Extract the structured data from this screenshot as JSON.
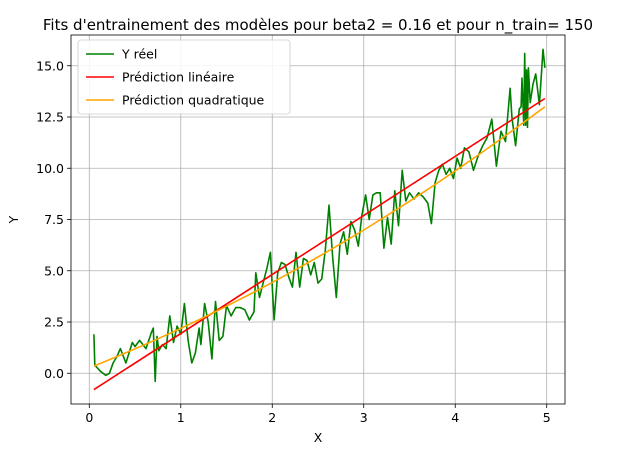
{
  "chart_data": {
    "type": "line",
    "title": "Fits d'entrainement des modèles pour beta2 = 0.16 et pour n_train= 150",
    "xlabel": "X",
    "ylabel": "Y",
    "xlim": [
      -0.2,
      5.2
    ],
    "ylim": [
      -1.5,
      16.5
    ],
    "xticks": [
      0,
      1,
      2,
      3,
      4,
      5
    ],
    "xtick_labels": [
      "0",
      "1",
      "2",
      "3",
      "4",
      "5"
    ],
    "yticks": [
      0.0,
      2.5,
      5.0,
      7.5,
      10.0,
      12.5,
      15.0
    ],
    "ytick_labels": [
      "0.0",
      "2.5",
      "5.0",
      "7.5",
      "10.0",
      "12.5",
      "15.0"
    ],
    "grid": true,
    "legend_position": "top-left",
    "series": [
      {
        "name": "Y réel",
        "color": "#008000",
        "x": [
          0.05,
          0.06,
          0.08,
          0.12,
          0.18,
          0.22,
          0.26,
          0.3,
          0.34,
          0.4,
          0.47,
          0.5,
          0.55,
          0.62,
          0.68,
          0.7,
          0.72,
          0.74,
          0.76,
          0.8,
          0.84,
          0.88,
          0.92,
          0.96,
          1.0,
          1.04,
          1.08,
          1.12,
          1.16,
          1.18,
          1.2,
          1.22,
          1.26,
          1.3,
          1.34,
          1.38,
          1.42,
          1.46,
          1.5,
          1.55,
          1.6,
          1.65,
          1.7,
          1.75,
          1.8,
          1.82,
          1.86,
          1.9,
          1.94,
          1.98,
          2.02,
          2.06,
          2.1,
          2.14,
          2.18,
          2.22,
          2.26,
          2.3,
          2.34,
          2.38,
          2.42,
          2.46,
          2.5,
          2.54,
          2.58,
          2.62,
          2.66,
          2.7,
          2.74,
          2.78,
          2.82,
          2.86,
          2.9,
          2.94,
          2.98,
          3.02,
          3.06,
          3.1,
          3.14,
          3.18,
          3.22,
          3.26,
          3.3,
          3.34,
          3.38,
          3.42,
          3.46,
          3.5,
          3.55,
          3.6,
          3.65,
          3.7,
          3.74,
          3.78,
          3.82,
          3.86,
          3.9,
          3.94,
          3.98,
          4.02,
          4.06,
          4.1,
          4.15,
          4.2,
          4.25,
          4.3,
          4.35,
          4.4,
          4.45,
          4.5,
          4.55,
          4.6,
          4.62,
          4.66,
          4.7,
          4.72,
          4.73,
          4.74,
          4.75,
          4.76,
          4.77,
          4.78,
          4.79,
          4.8,
          4.82,
          4.85,
          4.88,
          4.92,
          4.96,
          4.98
        ],
        "y": [
          1.9,
          0.4,
          0.3,
          0.1,
          -0.1,
          0.0,
          0.5,
          0.8,
          1.2,
          0.5,
          1.5,
          1.3,
          1.6,
          1.2,
          2.0,
          2.2,
          -0.4,
          1.8,
          1.1,
          1.4,
          1.2,
          2.8,
          1.5,
          2.3,
          1.9,
          3.4,
          1.6,
          0.5,
          1.0,
          1.6,
          2.2,
          1.4,
          3.4,
          2.5,
          0.7,
          3.5,
          1.6,
          1.8,
          3.3,
          2.8,
          3.2,
          3.2,
          3.1,
          2.6,
          3.0,
          4.9,
          3.7,
          4.4,
          5.1,
          5.9,
          2.6,
          4.9,
          5.4,
          5.3,
          4.7,
          4.2,
          5.9,
          4.2,
          5.6,
          5.5,
          4.8,
          5.4,
          4.4,
          4.6,
          6.0,
          8.2,
          5.7,
          3.7,
          6.3,
          6.9,
          5.8,
          7.4,
          7.0,
          6.2,
          7.7,
          8.7,
          7.5,
          8.7,
          8.8,
          8.8,
          6.1,
          7.6,
          6.3,
          8.9,
          7.2,
          9.9,
          8.4,
          8.8,
          8.5,
          8.8,
          8.6,
          8.3,
          7.3,
          9.3,
          9.9,
          10.2,
          9.7,
          10.0,
          9.5,
          10.5,
          10.0,
          11.0,
          10.8,
          9.9,
          10.6,
          11.1,
          11.5,
          12.4,
          10.1,
          11.8,
          11.3,
          13.9,
          12.5,
          11.1,
          12.9,
          13.0,
          14.4,
          13.2,
          12.1,
          15.6,
          12.1,
          14.8,
          12.0,
          14.9,
          13.2,
          14.1,
          14.6,
          13.1,
          15.8,
          14.9
        ]
      },
      {
        "name": "Prédiction linéaire",
        "color": "#ff0000",
        "x": [
          0.05,
          4.98
        ],
        "y": [
          -0.8,
          13.4
        ]
      },
      {
        "name": "Prédiction quadratique",
        "color": "#ffa500",
        "x": [
          0.05,
          0.25,
          0.5,
          0.75,
          1.0,
          1.25,
          1.5,
          1.75,
          2.0,
          2.25,
          2.5,
          2.75,
          3.0,
          3.25,
          3.5,
          3.75,
          4.0,
          4.25,
          4.5,
          4.75,
          4.98
        ],
        "y": [
          0.35,
          0.72,
          1.19,
          1.68,
          2.19,
          2.72,
          3.27,
          3.84,
          4.43,
          5.04,
          5.67,
          6.32,
          6.99,
          7.68,
          8.39,
          9.12,
          9.87,
          10.64,
          11.43,
          12.24,
          13.0
        ]
      }
    ]
  }
}
